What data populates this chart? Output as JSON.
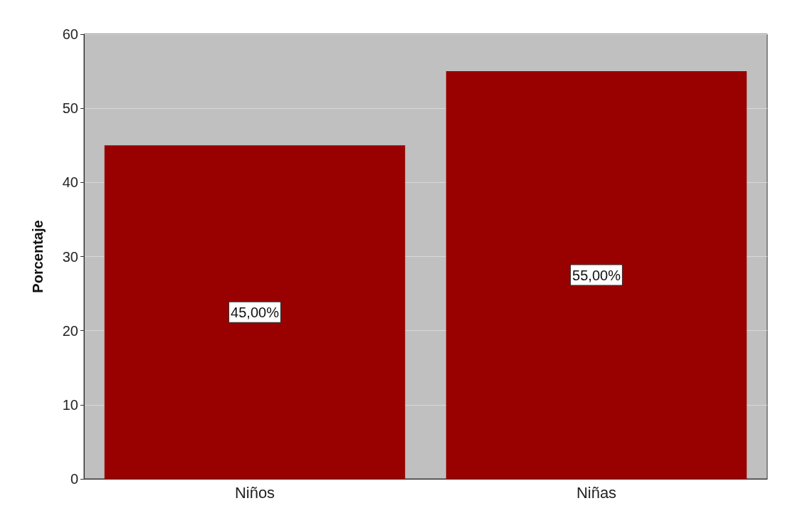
{
  "chart_data": {
    "type": "bar",
    "ylabel": "Porcentaje",
    "categories": [
      "Niños",
      "Niñas"
    ],
    "values": [
      45,
      55
    ],
    "value_labels": [
      "45,00%",
      "55,00%"
    ],
    "color": "#990000",
    "ylim": [
      0,
      60
    ],
    "yticks": [
      0,
      10,
      20,
      30,
      40,
      50,
      60
    ],
    "grid": "y"
  }
}
